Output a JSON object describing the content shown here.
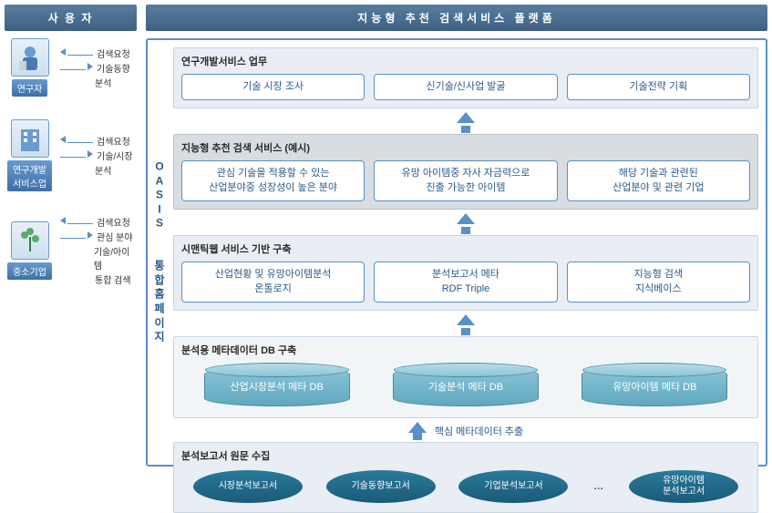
{
  "left": {
    "header": "사 용 자",
    "users": [
      {
        "label": "연구자",
        "req": "검색요청",
        "resp1": "기술동향",
        "resp2": "분석",
        "icon": "person"
      },
      {
        "label": "연구개발\n서비스업",
        "req": "검색요청",
        "resp1": "기술/시장",
        "resp2": "분석",
        "icon": "building"
      },
      {
        "label": "중소기업",
        "req": "검색요청",
        "resp1": "관심 분야",
        "resp2": "기술/아이템",
        "resp3": "통합 검색",
        "icon": "plant"
      }
    ]
  },
  "right": {
    "header": "지능형 추천 검색서비스 플랫폼",
    "vlabel": "OASIS\n\n통합홈페이지",
    "s1": {
      "title": "연구개발서비스 업무",
      "boxes": [
        "기술 시장 조사",
        "신기술/신사업 발굴",
        "기술전략 기획"
      ]
    },
    "s2": {
      "title": "지능형 추천 검색 서비스 (예시)",
      "boxes": [
        "관심 기술을 적용할 수 있는\n산업분야중 성장성이 높은 분야",
        "유망 아이템중 자사 자금력으로\n진출 가능한 아이템",
        "해당 기술과 관련된\n산업분야 및 관련 기업"
      ]
    },
    "s3": {
      "title": "시맨틱웹 서비스 기반 구축",
      "boxes": [
        "산업현황 및 유망아이템분석\n온톨로지",
        "분석보고서 메타\nRDF Triple",
        "지능형 검색\n지식베이스"
      ]
    },
    "s4": {
      "title": "분석용 메타데이터 DB 구축",
      "cyls": [
        "산업시장분석 메타 DB",
        "기술분석 메타 DB",
        "유망아이템 메타 DB"
      ]
    },
    "extract": "핵심 메타데이터 추출",
    "s5": {
      "title": "분석보고서 원문 수집",
      "ellipses": [
        "시장분석보고서",
        "기술동향보고서",
        "기업분석보고서",
        "유망아이템\n분석보고서"
      ],
      "dots": "…"
    }
  },
  "colors": {
    "primary": "#5a8fc7",
    "dark": "#2a5a8a",
    "teal": "#1a5a7a"
  }
}
